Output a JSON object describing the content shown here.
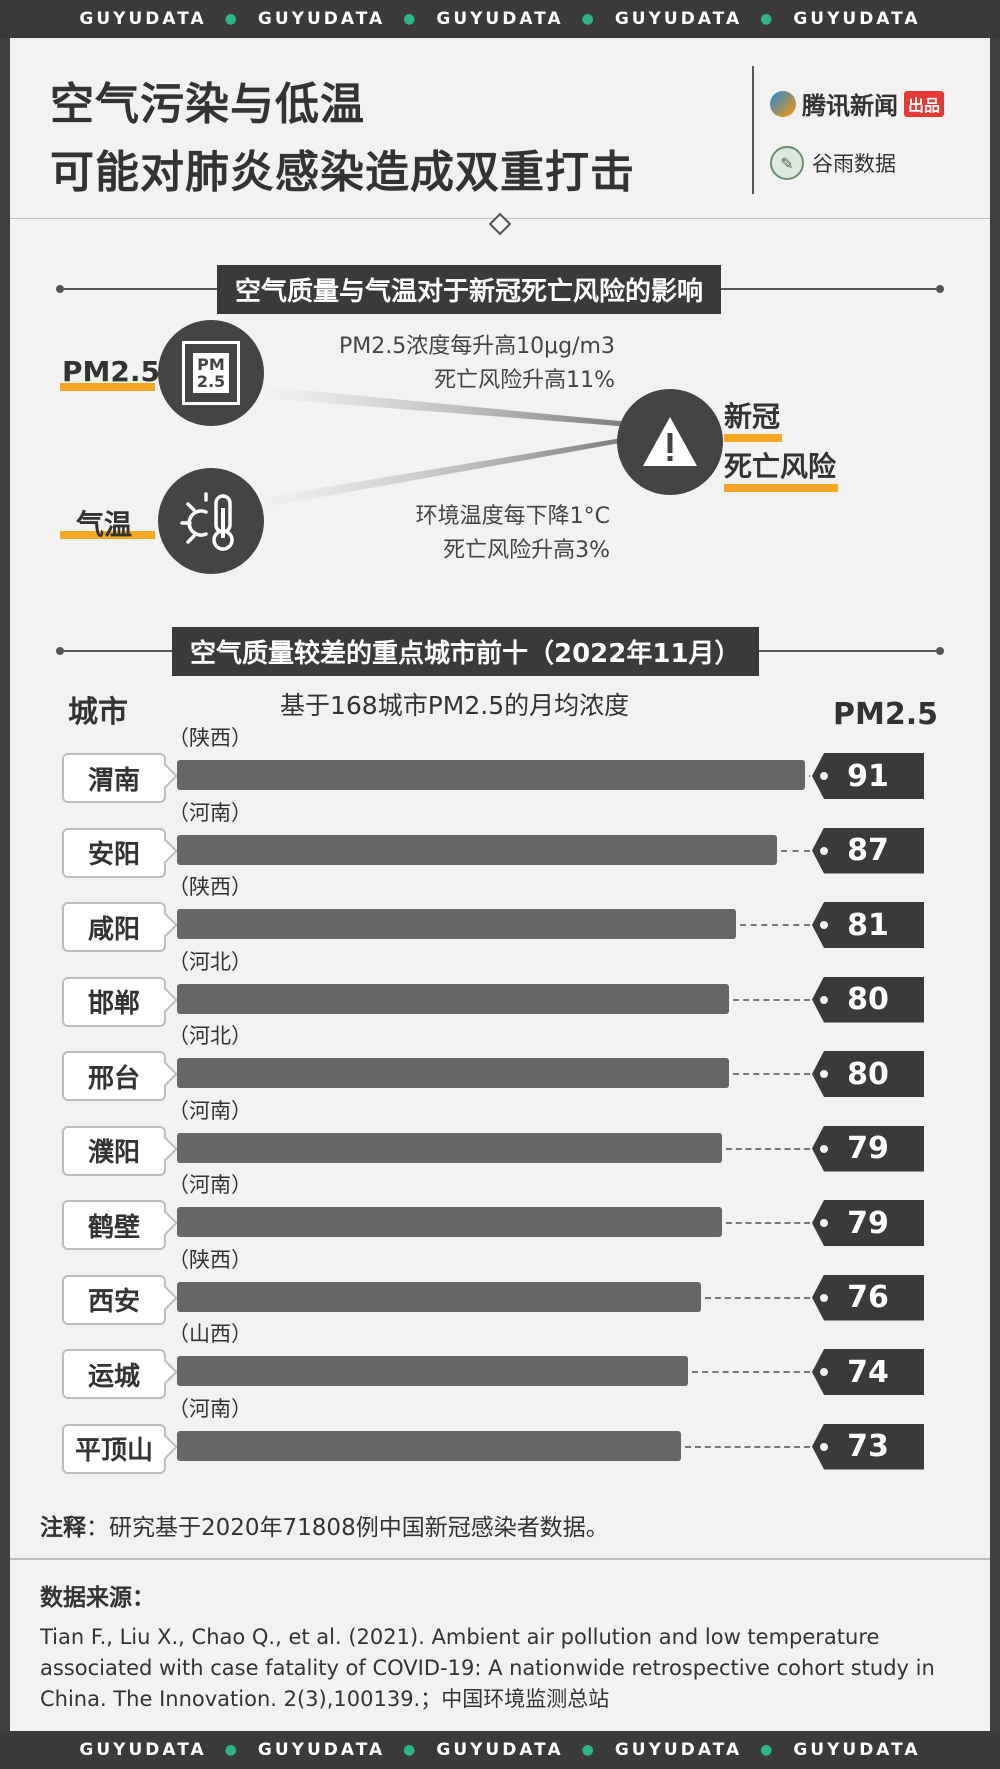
{
  "brand_strip": {
    "items": [
      "GUYUDATA",
      "GUYUDATA",
      "GUYUDATA",
      "GUYUDATA",
      "GUYUDATA"
    ]
  },
  "header": {
    "title_line1": "空气污染与低温",
    "title_line2": "可能对肺炎感染造成双重打击",
    "logo_tencent_text": "腾讯新闻",
    "logo_tencent_badge": "出品",
    "logo_guyu_text": "谷雨数据"
  },
  "section1": {
    "title": "空气质量与气温对于新冠死亡风险的影响",
    "pm_label": "PM2.5",
    "pm_icon_text": "PM\n2.5",
    "temp_label": "气温",
    "pm_effect_line1": "PM2.5浓度每升高10μg/m3",
    "pm_effect_line2": "死亡风险升高11%",
    "temp_effect_line1": "环境温度每下降1°C",
    "temp_effect_line2": "死亡风险升高3%",
    "result_line1": "新冠",
    "result_line2": "死亡风险"
  },
  "section2": {
    "title": "空气质量较差的重点城市前十（2022年11月）",
    "col_city": "城市",
    "col_pm": "PM2.5",
    "subtitle": "基于168城市PM2.5的月均浓度"
  },
  "chart_data": {
    "type": "bar",
    "orientation": "horizontal",
    "title": "空气质量较差的重点城市前十（2022年11月）",
    "subtitle": "基于168城市PM2.5的月均浓度",
    "categories": [
      "渭南",
      "安阳",
      "咸阳",
      "邯郸",
      "邢台",
      "濮阳",
      "鹤壁",
      "西安",
      "运城",
      "平顶山"
    ],
    "provinces": [
      "（陕西）",
      "（河南）",
      "（陕西）",
      "（河北）",
      "（河北）",
      "（河南）",
      "（河南）",
      "（陕西）",
      "（山西）",
      "（河南）"
    ],
    "values": [
      91,
      87,
      81,
      80,
      80,
      79,
      79,
      76,
      74,
      73
    ],
    "value_label": "PM2.5",
    "bar_color": "#666666"
  },
  "note": {
    "label": "注释",
    "text": "：研究基于2020年71808例中国新冠感染者数据。"
  },
  "source": {
    "title": "数据来源：",
    "text": "Tian F., Liu X., Chao Q., et al. (2021). Ambient air pollution and low temperature associated with case fatality of COVID-19: A nationwide retrospective cohort study in China. The Innovation. 2(3),100139.；中国环境监测总站"
  },
  "colors": {
    "accent_orange": "#f5a623",
    "dark": "#3a3a3a",
    "paper": "#f2f2f2",
    "dot_green": "#2fb38a"
  }
}
